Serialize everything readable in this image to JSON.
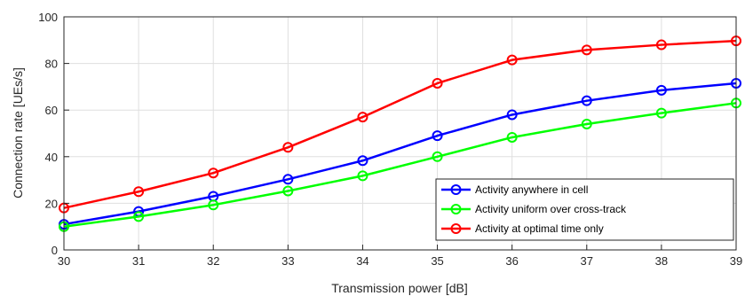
{
  "chart_data": {
    "type": "line",
    "title": "",
    "xlabel": "Transmission power [dB]",
    "ylabel": "Connection rate [UEs/s]",
    "x": [
      30,
      31,
      32,
      33,
      34,
      35,
      36,
      37,
      38,
      39
    ],
    "xlim": [
      30,
      39
    ],
    "ylim": [
      0,
      100
    ],
    "xticks": [
      "30",
      "31",
      "32",
      "33",
      "34",
      "35",
      "36",
      "37",
      "38",
      "39"
    ],
    "yticks": [
      "0",
      "20",
      "40",
      "60",
      "80",
      "100"
    ],
    "grid": true,
    "legend_position": "bottom-right",
    "series": [
      {
        "name": "Activity anywhere in cell",
        "color": "#0000ff",
        "marker": "circle",
        "values": [
          11,
          16.5,
          23,
          30.3,
          38.3,
          49,
          58,
          64,
          68.5,
          71.5
        ]
      },
      {
        "name": "Activity uniform over cross-track",
        "color": "#00ff00",
        "marker": "circle",
        "values": [
          10,
          14.3,
          19.3,
          25.3,
          31.8,
          40,
          48.3,
          54,
          58.7,
          63
        ]
      },
      {
        "name": "Activity at optimal time only",
        "color": "#ff0000",
        "marker": "circle",
        "values": [
          18,
          25,
          33,
          44,
          57,
          71.5,
          81.5,
          85.8,
          88,
          89.7
        ]
      }
    ]
  }
}
